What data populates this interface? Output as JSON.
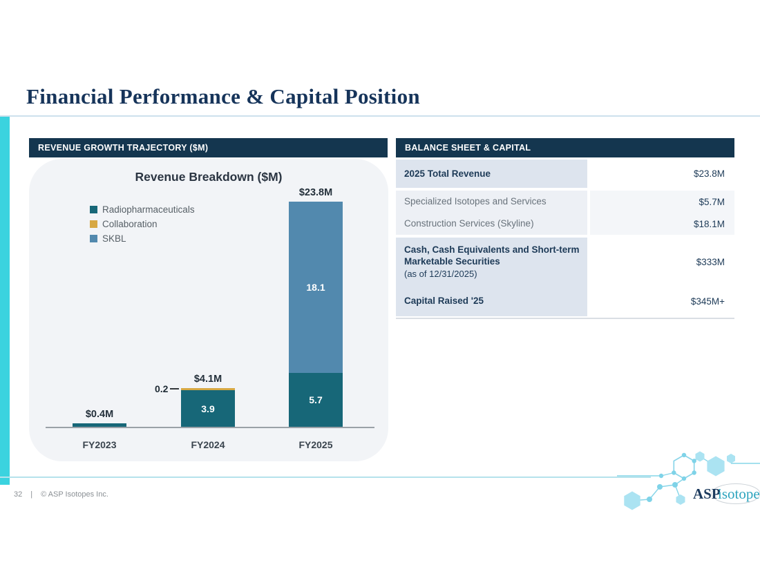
{
  "slide": {
    "title": "Financial Performance & Capital Position",
    "footer": {
      "page_number": "32",
      "separator": "|",
      "copyright": "© ASP Isotopes Inc."
    },
    "logo": {
      "brand_primary": "ASP",
      "brand_secondary": "isotopes"
    }
  },
  "left_panel": {
    "header": "REVENUE GROWTH TRAJECTORY ($M)"
  },
  "chart_data": {
    "type": "bar",
    "subtype": "stacked",
    "title": "Revenue Breakdown ($M)",
    "categories": [
      "FY2023",
      "FY2024",
      "FY2025"
    ],
    "series": [
      {
        "name": "Radiopharmaceuticals",
        "color": "#176778",
        "values": [
          0.4,
          3.9,
          5.7
        ]
      },
      {
        "name": "Collaboration",
        "color": "#d7a843",
        "values": [
          0,
          0.2,
          0
        ]
      },
      {
        "name": "SKBL",
        "color": "#5289ae",
        "values": [
          0,
          0,
          18.1
        ]
      }
    ],
    "totals": [
      0.4,
      4.1,
      23.8
    ],
    "total_labels": [
      "$0.4M",
      "$4.1M",
      "$23.8M"
    ],
    "inside_labels": [
      {
        "bar": 1,
        "series": "Radiopharmaceuticals",
        "text": "3.9"
      },
      {
        "bar": 2,
        "series": "Radiopharmaceuticals",
        "text": "5.7"
      },
      {
        "bar": 2,
        "series": "SKBL",
        "text": "18.1"
      }
    ],
    "callout": {
      "bar": 1,
      "series": "Collaboration",
      "text": "0.2"
    },
    "legend_position": "top-left",
    "xlabel": "",
    "ylabel": "",
    "ylim": [
      0,
      26
    ],
    "grid": false
  },
  "right_panel": {
    "header": "BALANCE SHEET & CAPITAL",
    "rows": [
      {
        "label": "2025 Total Revenue",
        "value": "$23.8M",
        "style": "primary"
      },
      {
        "label": "Specialized Isotopes and Services",
        "value": "$5.7M",
        "style": "secondary"
      },
      {
        "label": "Construction Services (Skyline)",
        "value": "$18.1M",
        "style": "secondary"
      },
      {
        "label": "Cash, Cash Equivalents and Short-term Marketable Securities",
        "label_note": "(as of 12/31/2025)",
        "value": "$333M",
        "style": "primary"
      },
      {
        "label": "Capital Raised '25",
        "value": "$345M+",
        "style": "primary"
      }
    ]
  },
  "colors": {
    "header_navy": "#14364f",
    "title_navy": "#16345a",
    "accent_cyan": "#3bd3df",
    "teal": "#176778",
    "gold": "#d7a843",
    "steel_blue": "#5289ae",
    "card_bg": "#f2f4f7",
    "row_blue_gray": "#dde4ee",
    "row_light_gray": "#edf0f5"
  }
}
